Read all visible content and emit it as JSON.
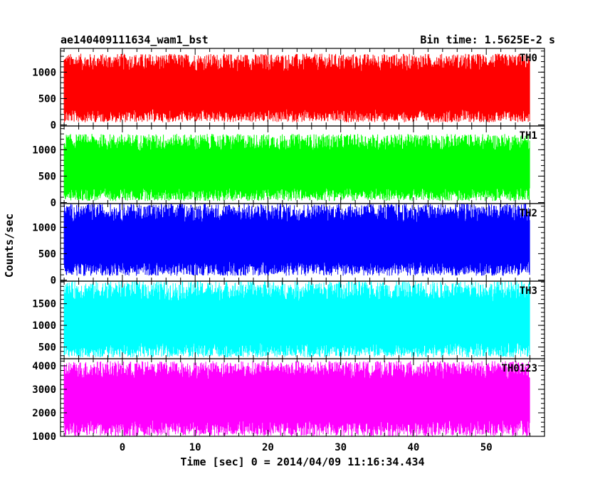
{
  "chart_data": {
    "type": "line",
    "title_left": "ae140409111634_wam1_bst",
    "title_right": "Bin time: 1.5625E-2 s",
    "xlabel": "Time [sec] 0 = 2014/04/09 11:16:34.434",
    "ylabel": "Counts/sec",
    "xlim": [
      -8.5,
      58.0
    ],
    "data_range": [
      -8.0,
      56.0
    ],
    "x_ticks": [
      0,
      10,
      20,
      30,
      40,
      50
    ],
    "grid": false,
    "panels": [
      {
        "name": "TH0",
        "color": "#ff0000",
        "ylim": [
          -20,
          1450
        ],
        "y_ticks": [
          0,
          500,
          1000
        ],
        "mean": 600,
        "low": 50,
        "high": 1350
      },
      {
        "name": "TH1",
        "color": "#00ff00",
        "ylim": [
          -20,
          1450
        ],
        "y_ticks": [
          0,
          500,
          1000
        ],
        "mean": 580,
        "low": 30,
        "high": 1300
      },
      {
        "name": "TH2",
        "color": "#0000ff",
        "ylim": [
          -20,
          1450
        ],
        "y_ticks": [
          0,
          500,
          1000
        ],
        "mean": 680,
        "low": 80,
        "high": 1450
      },
      {
        "name": "TH3",
        "color": "#00ffff",
        "ylim": [
          230,
          2020
        ],
        "y_ticks": [
          500,
          1000,
          1500
        ],
        "mean": 1000,
        "low": 260,
        "high": 2020
      },
      {
        "name": "TH0123",
        "color": "#ff00ff",
        "ylim": [
          1000,
          4300
        ],
        "y_ticks": [
          1000,
          2000,
          3000,
          4000
        ],
        "mean": 2500,
        "low": 1000,
        "high": 4200
      }
    ]
  }
}
